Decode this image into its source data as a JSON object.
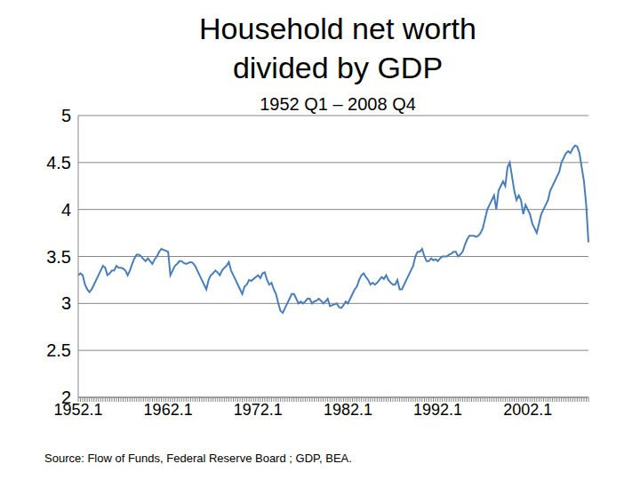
{
  "chart_data": {
    "type": "line",
    "title": "Household net worth divided by GDP",
    "subtitle": "1952 Q1 – 2008 Q4",
    "source": "Source: Flow of Funds, Federal Reserve Board ; GDP, BEA.",
    "categories": [
      "1952.1",
      null,
      null,
      null,
      null,
      null,
      null,
      null,
      null,
      null,
      null,
      null,
      null,
      null,
      null,
      null,
      null,
      null,
      null,
      null,
      null,
      null,
      null,
      null,
      null,
      null,
      null,
      null,
      null,
      null,
      null,
      null,
      null,
      null,
      null,
      null,
      null,
      null,
      null,
      null,
      "1962.1",
      null,
      null,
      null,
      null,
      null,
      null,
      null,
      null,
      null,
      null,
      null,
      null,
      null,
      null,
      null,
      null,
      null,
      null,
      null,
      null,
      null,
      null,
      null,
      null,
      null,
      null,
      null,
      null,
      null,
      null,
      null,
      null,
      null,
      null,
      null,
      null,
      null,
      null,
      null,
      "1972.1",
      null,
      null,
      null,
      null,
      null,
      null,
      null,
      null,
      null,
      null,
      null,
      null,
      null,
      null,
      null,
      null,
      null,
      null,
      null,
      null,
      null,
      null,
      null,
      null,
      null,
      null,
      null,
      null,
      null,
      null,
      null,
      null,
      null,
      null,
      null,
      null,
      null,
      null,
      null,
      "1982.1",
      null,
      null,
      null,
      null,
      null,
      null,
      null,
      null,
      null,
      null,
      null,
      null,
      null,
      null,
      null,
      null,
      null,
      null,
      null,
      null,
      null,
      null,
      null,
      null,
      null,
      null,
      null,
      null,
      null,
      null,
      null,
      null,
      null,
      null,
      null,
      null,
      null,
      null,
      null,
      "1992.1",
      null,
      null,
      null,
      null,
      null,
      null,
      null,
      null,
      null,
      null,
      null,
      null,
      null,
      null,
      null,
      null,
      null,
      null,
      null,
      null,
      null,
      null,
      null,
      null,
      null,
      null,
      null,
      null,
      null,
      null,
      null,
      null,
      null,
      null,
      null,
      null,
      null,
      null,
      null,
      "2002.1",
      null,
      null,
      null,
      null,
      null,
      null,
      null,
      null,
      null,
      null,
      null,
      null,
      null,
      null,
      null,
      null,
      null,
      null,
      null,
      null,
      null,
      null,
      null,
      null,
      null,
      null,
      null
    ],
    "values": [
      3.3,
      3.32,
      3.3,
      3.2,
      3.15,
      3.12,
      3.15,
      3.2,
      3.25,
      3.3,
      3.35,
      3.4,
      3.38,
      3.3,
      3.32,
      3.35,
      3.35,
      3.4,
      3.38,
      3.38,
      3.37,
      3.35,
      3.3,
      3.35,
      3.42,
      3.48,
      3.52,
      3.52,
      3.5,
      3.47,
      3.45,
      3.48,
      3.45,
      3.42,
      3.47,
      3.5,
      3.55,
      3.58,
      3.57,
      3.56,
      3.55,
      3.3,
      3.35,
      3.4,
      3.42,
      3.45,
      3.45,
      3.43,
      3.42,
      3.43,
      3.44,
      3.43,
      3.4,
      3.35,
      3.3,
      3.25,
      3.2,
      3.15,
      3.25,
      3.3,
      3.32,
      3.35,
      3.33,
      3.3,
      3.35,
      3.38,
      3.4,
      3.44,
      3.35,
      3.3,
      3.25,
      3.2,
      3.15,
      3.1,
      3.18,
      3.2,
      3.25,
      3.24,
      3.26,
      3.28,
      3.3,
      3.27,
      3.32,
      3.33,
      3.25,
      3.2,
      3.22,
      3.15,
      3.1,
      3.0,
      2.92,
      2.9,
      2.95,
      3.0,
      3.05,
      3.1,
      3.1,
      3.05,
      3.0,
      3.02,
      3.0,
      3.02,
      3.05,
      3.05,
      3.0,
      3.02,
      3.03,
      3.05,
      3.03,
      3.0,
      3.02,
      3.05,
      2.97,
      2.98,
      2.99,
      3.0,
      2.96,
      2.95,
      2.98,
      3.02,
      3.0,
      3.05,
      3.1,
      3.15,
      3.18,
      3.25,
      3.3,
      3.32,
      3.28,
      3.25,
      3.2,
      3.22,
      3.2,
      3.22,
      3.25,
      3.28,
      3.26,
      3.3,
      3.25,
      3.22,
      3.2,
      3.2,
      3.25,
      3.15,
      3.15,
      3.2,
      3.25,
      3.3,
      3.35,
      3.4,
      3.5,
      3.55,
      3.55,
      3.58,
      3.5,
      3.45,
      3.45,
      3.48,
      3.46,
      3.47,
      3.45,
      3.48,
      3.5,
      3.5,
      3.5,
      3.52,
      3.53,
      3.55,
      3.55,
      3.5,
      3.52,
      3.55,
      3.62,
      3.68,
      3.72,
      3.72,
      3.72,
      3.71,
      3.72,
      3.75,
      3.8,
      3.9,
      4.0,
      4.05,
      4.1,
      4.15,
      4.0,
      4.2,
      4.25,
      4.3,
      4.25,
      4.45,
      4.5,
      4.35,
      4.2,
      4.1,
      4.15,
      4.1,
      3.95,
      4.05,
      4.0,
      3.95,
      3.85,
      3.8,
      3.75,
      3.85,
      3.95,
      4.0,
      4.05,
      4.1,
      4.2,
      4.25,
      4.3,
      4.35,
      4.4,
      4.5,
      4.55,
      4.6,
      4.62,
      4.6,
      4.65,
      4.68,
      4.67,
      4.6,
      4.45,
      4.3,
      4.05,
      3.65
    ],
    "color": "#4a7ebb",
    "ylim": [
      2,
      5
    ],
    "yticks": [
      2,
      2.5,
      3,
      3.5,
      4,
      4.5,
      5
    ],
    "grid": true
  }
}
